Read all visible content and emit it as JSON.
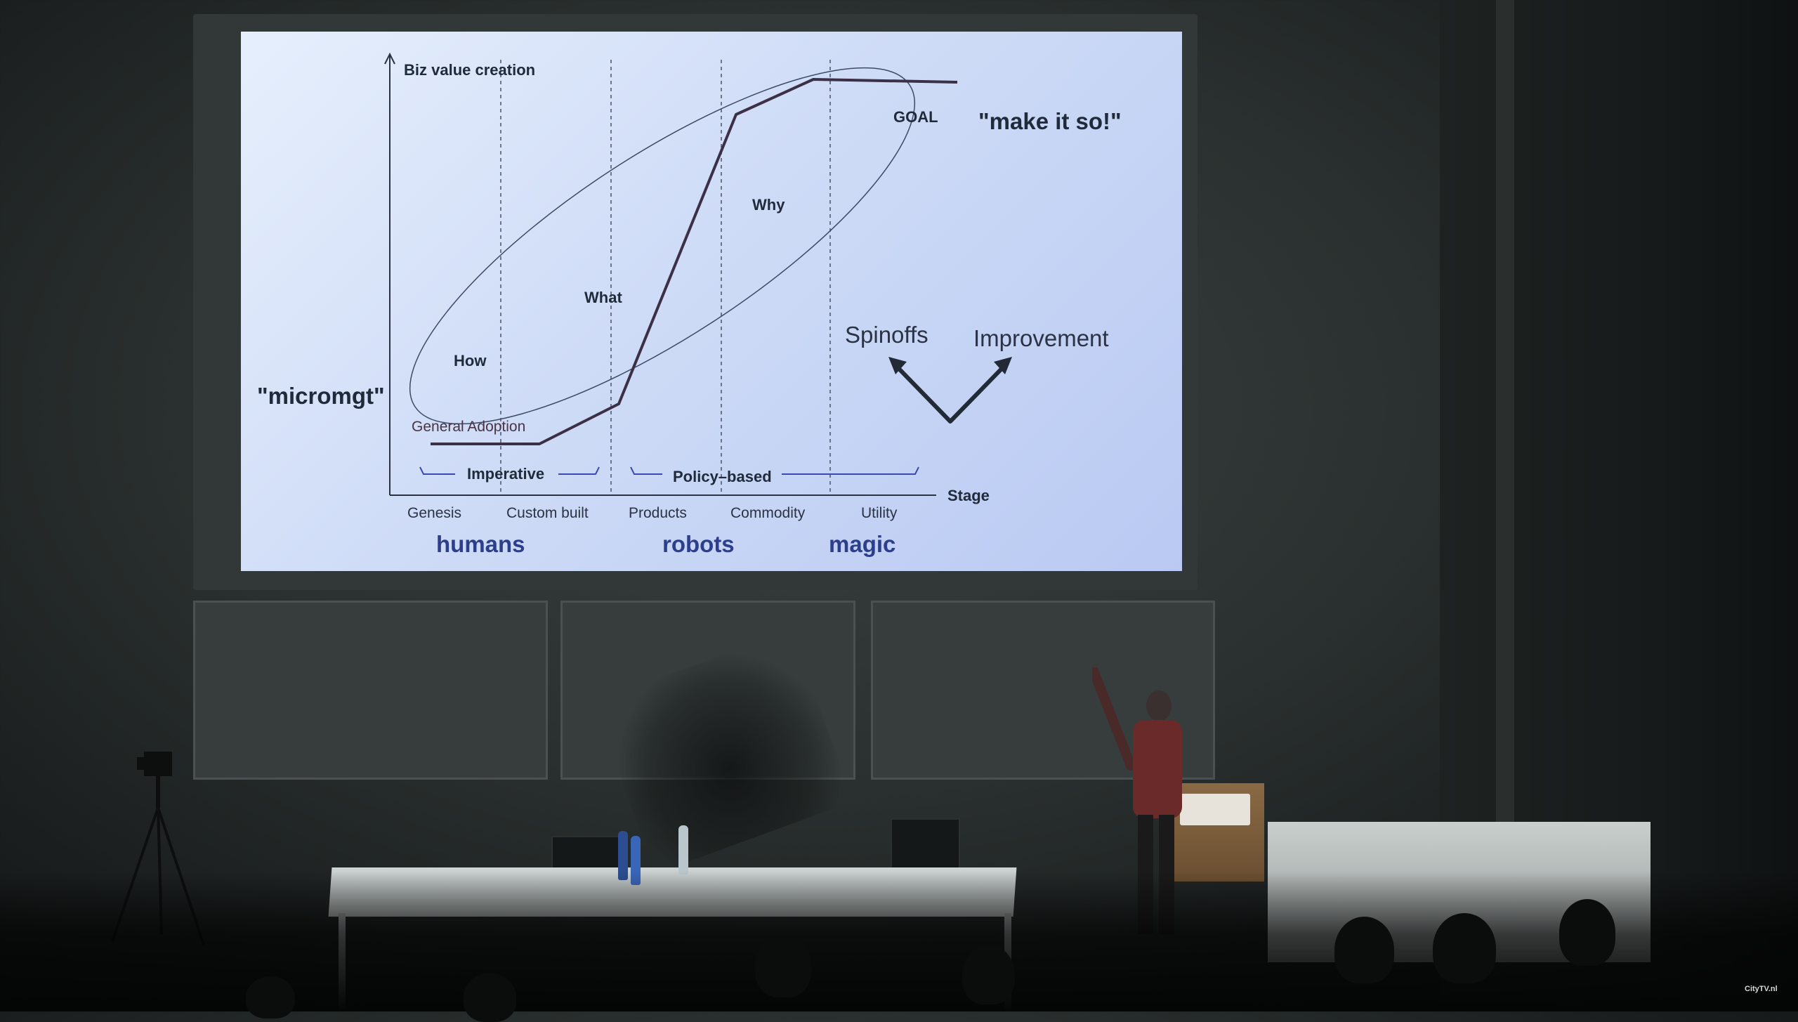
{
  "slide": {
    "y_axis_label": "Biz value creation",
    "x_axis_label": "Stage",
    "stages": [
      "Genesis",
      "Custom built",
      "Products",
      "Commodity",
      "Utility"
    ],
    "groups": [
      "humans",
      "robots",
      "magic"
    ],
    "brackets": [
      "Imperative",
      "Policy–based"
    ],
    "ellipse_labels": [
      "How",
      "What",
      "Why",
      "GOAL"
    ],
    "curve_label": "General Adoption",
    "left_quote": "\"micromgt\"",
    "right_quote": "\"make it so!\"",
    "branch_labels": [
      "Spinoffs",
      "Improvement"
    ]
  },
  "watermark": "CityTV.nl",
  "colors": {
    "slide_bg": "#d6e1f8",
    "slide_text": "#1f2a3a",
    "group_text": "#2d3f8c",
    "wall": "#2f3534"
  }
}
